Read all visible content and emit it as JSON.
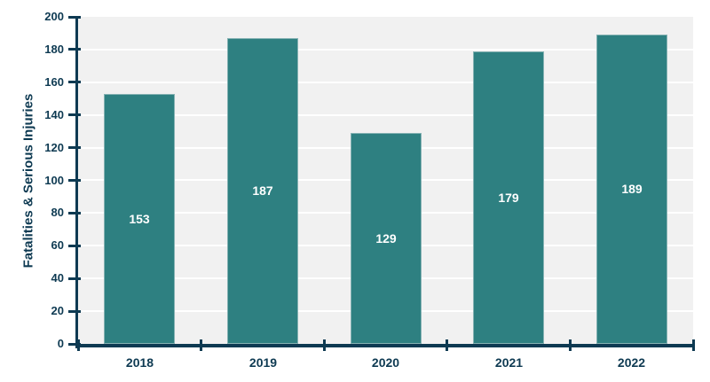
{
  "chart_data": {
    "type": "bar",
    "title": "",
    "xlabel": "",
    "ylabel": "Fatalities & Serious Injuries",
    "categories": [
      "2018",
      "2019",
      "2020",
      "2021",
      "2022"
    ],
    "values": [
      153,
      187,
      129,
      179,
      189
    ],
    "bar_labels": [
      "153",
      "187",
      "129",
      "179",
      "189"
    ],
    "ylim": [
      0,
      200
    ],
    "yticks": [
      0,
      20,
      40,
      60,
      80,
      100,
      120,
      140,
      160,
      180,
      200
    ],
    "grid": true,
    "legend": "none",
    "colors": {
      "bar": "#2e8081",
      "axis_and_text": "#0e3a52",
      "plot_background": "#f1f1f1",
      "gridline": "#ffffff",
      "bar_label_text": "#ffffff",
      "page_background": "#ffffff"
    }
  }
}
